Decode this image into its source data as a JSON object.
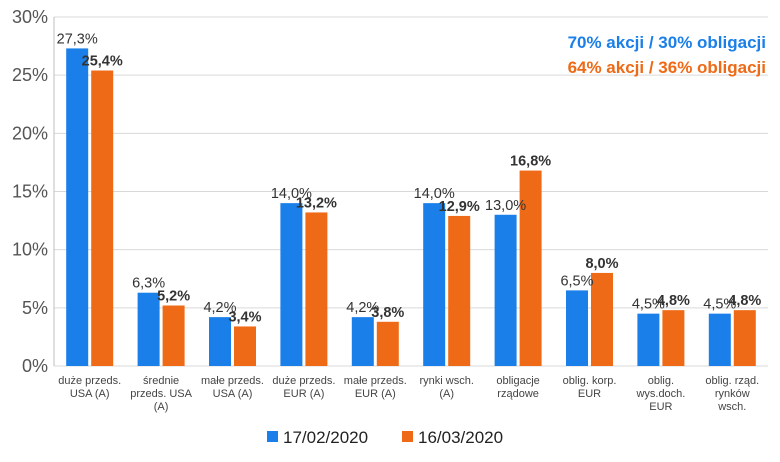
{
  "chart_data": {
    "type": "bar",
    "title": "",
    "xlabel": "",
    "ylabel": "",
    "ylim": [
      0,
      30
    ],
    "yticks": [
      "0%",
      "5%",
      "10%",
      "15%",
      "20%",
      "25%",
      "30%"
    ],
    "ytick_values": [
      0,
      5,
      10,
      15,
      20,
      25,
      30
    ],
    "categories": [
      [
        "duże przeds.",
        "USA (A)"
      ],
      [
        "średnie",
        "przeds. USA",
        "(A)"
      ],
      [
        "małe przeds.",
        "USA (A)"
      ],
      [
        "duże przeds.",
        "EUR (A)"
      ],
      [
        "małe przeds.",
        "EUR (A)"
      ],
      [
        "rynki wsch.",
        "(A)"
      ],
      [
        "obligacje",
        "rządowe"
      ],
      [
        "oblig. korp.",
        "EUR"
      ],
      [
        "oblig.",
        "wys.doch.",
        "EUR"
      ],
      [
        "oblig. rząd.",
        "rynków",
        "wsch."
      ]
    ],
    "series": [
      {
        "name": "17/02/2020",
        "color": "#1a7fe8",
        "values": [
          27.3,
          6.3,
          4.2,
          14.0,
          4.2,
          14.0,
          13.0,
          6.5,
          4.5,
          4.5
        ],
        "labels": [
          "27,3%",
          "6,3%",
          "4,2%",
          "14,0%",
          "4,2%",
          "14,0%",
          "13,0%",
          "6,5%",
          "4,5%",
          "4,5%"
        ]
      },
      {
        "name": "16/03/2020",
        "color": "#ee6a16",
        "values": [
          25.4,
          5.2,
          3.4,
          13.2,
          3.8,
          12.9,
          16.8,
          8.0,
          4.8,
          4.8
        ],
        "labels": [
          "25,4%",
          "5,2%",
          "3,4%",
          "13,2%",
          "3,8%",
          "12,9%",
          "16,8%",
          "8,0%",
          "4,8%",
          "4,8%"
        ]
      }
    ],
    "annotations": [
      {
        "text": "70% akcji / 30% obligacji",
        "color": "#1a7fe8"
      },
      {
        "text": "64% akcji / 36% obligacji",
        "color": "#ee6a16"
      }
    ],
    "legend_position": "bottom-center"
  }
}
